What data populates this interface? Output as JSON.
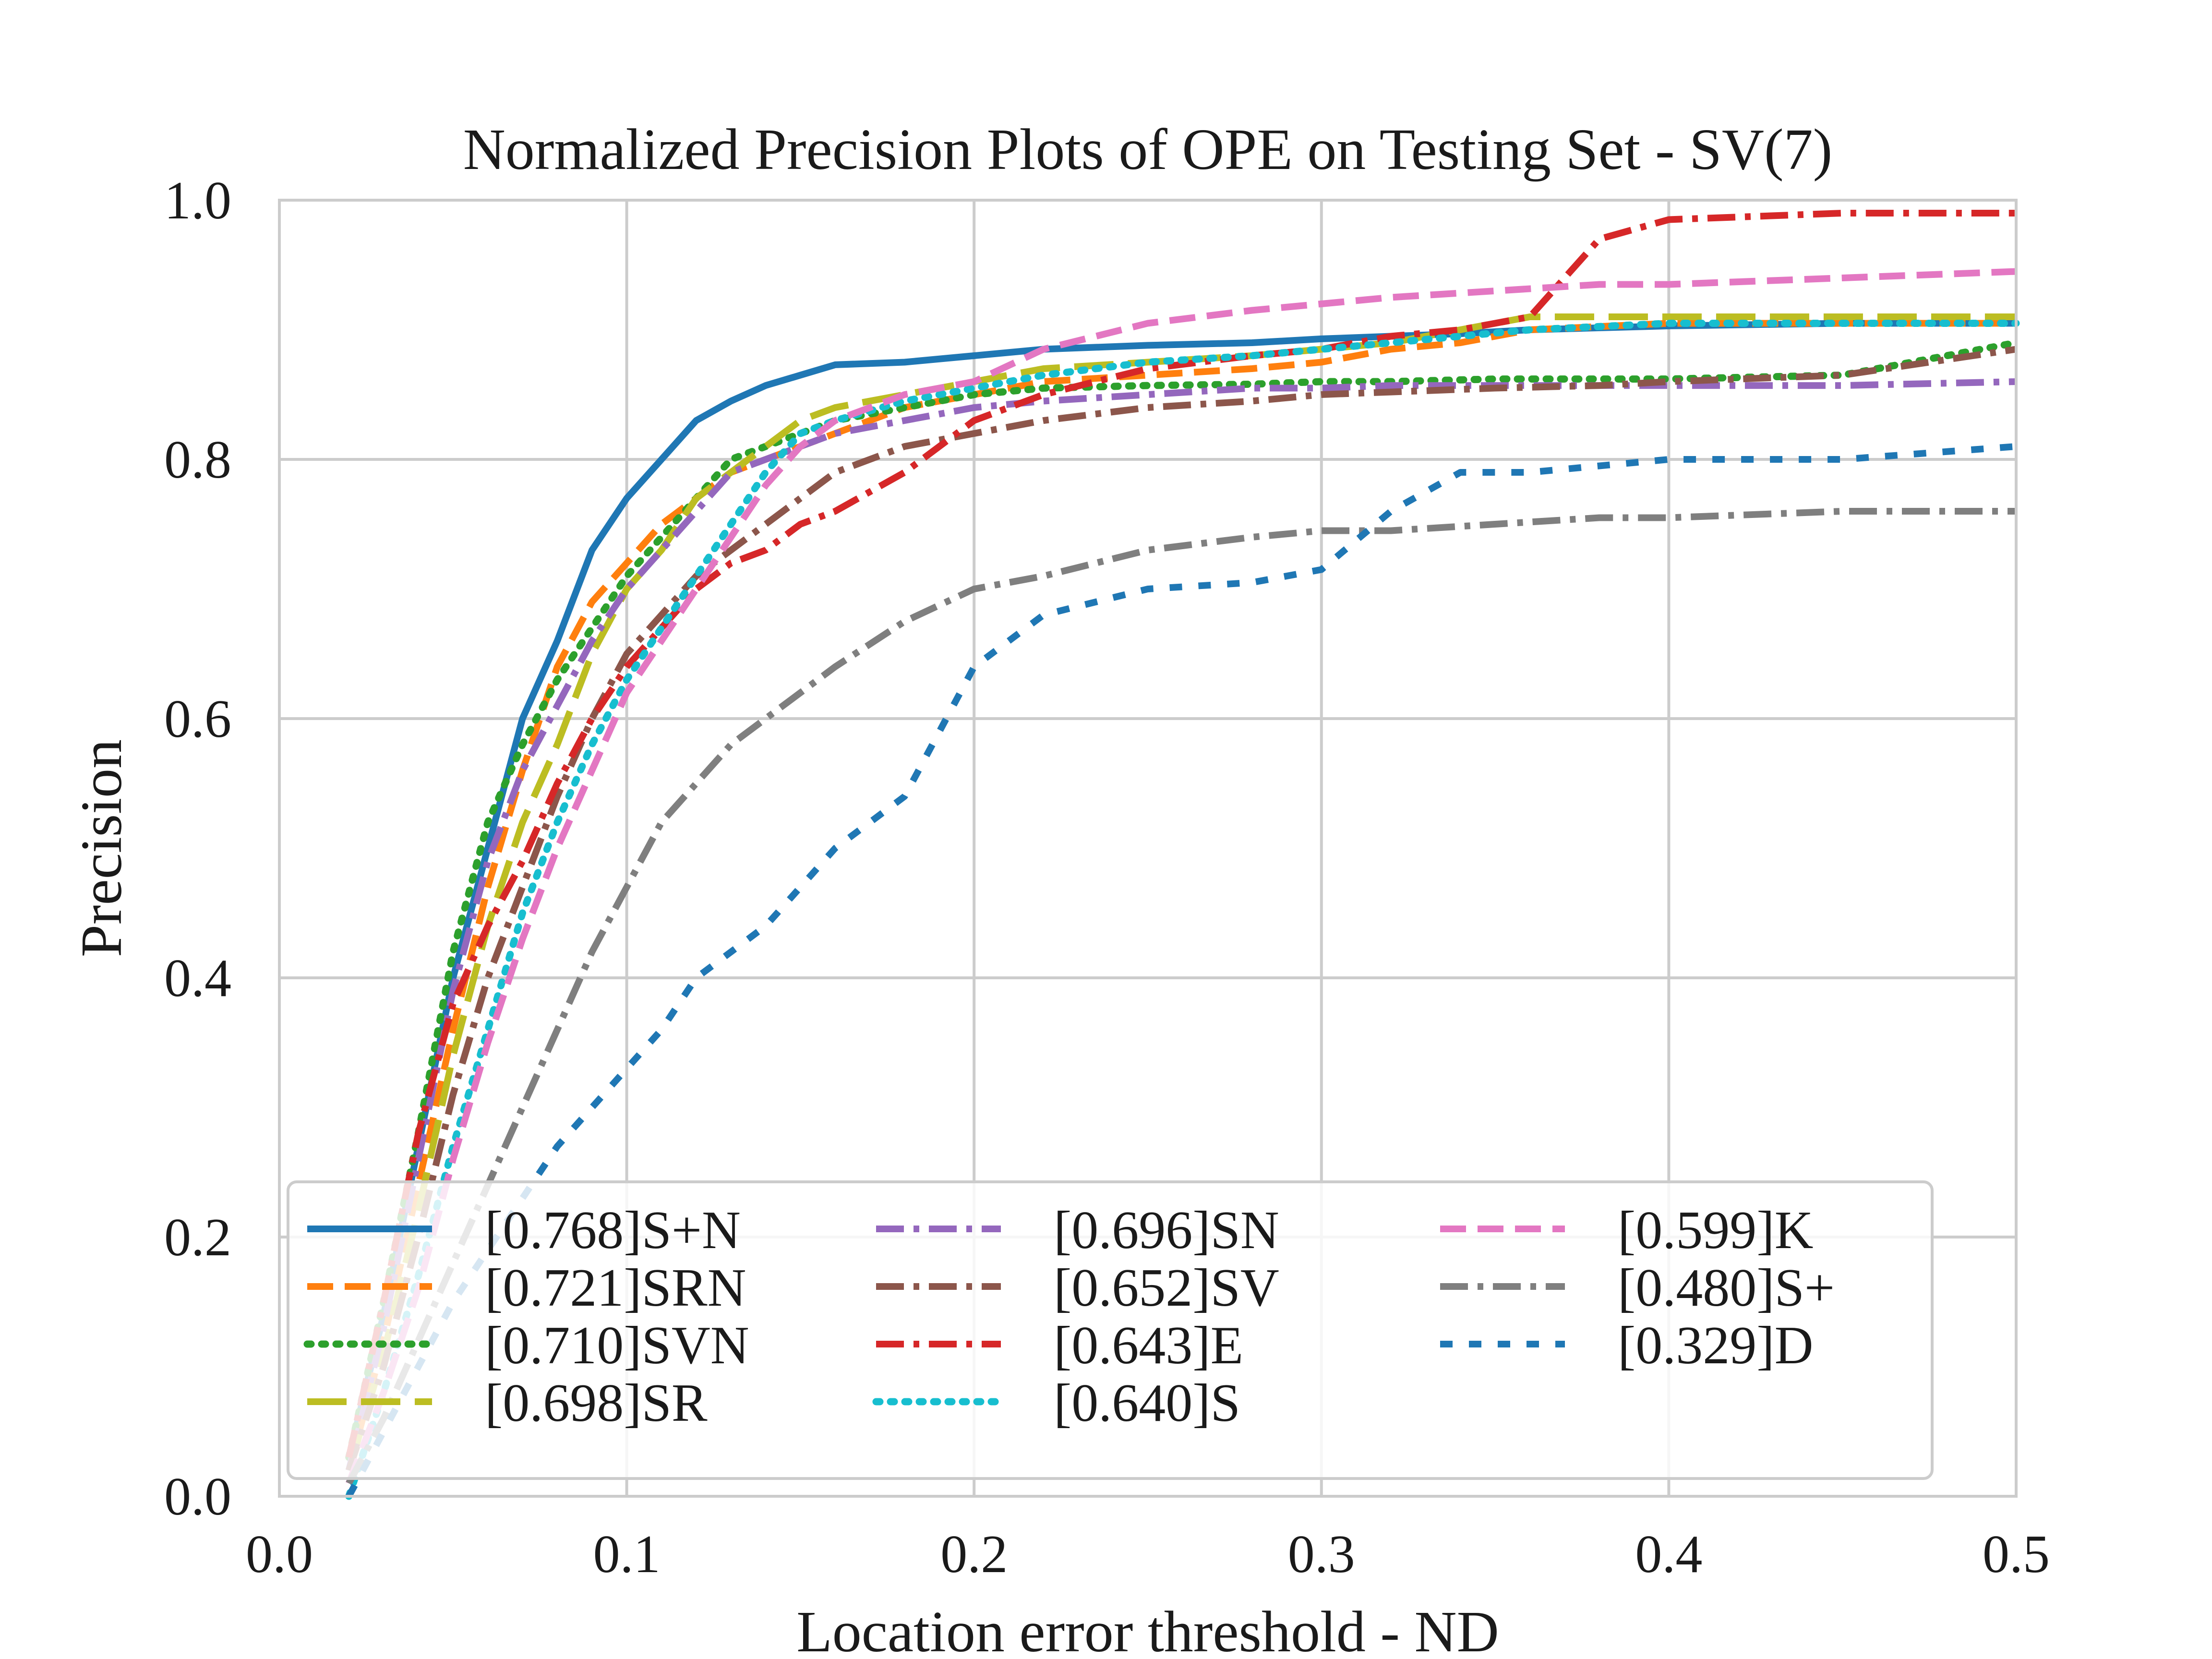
{
  "chart_data": {
    "type": "line",
    "title": "Normalized Precision Plots of OPE on Testing Set - SV(7)",
    "xlabel": "Location error threshold - ND",
    "ylabel": "Precision",
    "xlim": [
      0,
      0.5
    ],
    "ylim": [
      0,
      1
    ],
    "xticks": [
      "0.0",
      "0.1",
      "0.2",
      "0.3",
      "0.4",
      "0.5"
    ],
    "yticks": [
      "0.0",
      "0.2",
      "0.4",
      "0.6",
      "0.8",
      "1.0"
    ],
    "grid": true,
    "legend_position": "lower-center",
    "series": [
      {
        "name": "[0.768]S+N",
        "color": "#1f77b4",
        "style": "solid",
        "x": [
          0.02,
          0.03,
          0.04,
          0.05,
          0.06,
          0.07,
          0.08,
          0.09,
          0.1,
          0.11,
          0.12,
          0.13,
          0.14,
          0.15,
          0.16,
          0.18,
          0.2,
          0.22,
          0.25,
          0.28,
          0.3,
          0.32,
          0.34,
          0.36,
          0.4,
          0.45,
          0.5
        ],
        "y": [
          0.03,
          0.14,
          0.27,
          0.4,
          0.5,
          0.6,
          0.66,
          0.73,
          0.77,
          0.8,
          0.83,
          0.845,
          0.857,
          0.865,
          0.873,
          0.875,
          0.88,
          0.885,
          0.888,
          0.89,
          0.893,
          0.895,
          0.897,
          0.9,
          0.903,
          0.905,
          0.905
        ]
      },
      {
        "name": "[0.721]SRN",
        "color": "#ff7f0e",
        "style": "dashed",
        "x": [
          0.02,
          0.03,
          0.04,
          0.05,
          0.06,
          0.07,
          0.08,
          0.09,
          0.1,
          0.11,
          0.12,
          0.13,
          0.14,
          0.15,
          0.16,
          0.18,
          0.2,
          0.22,
          0.25,
          0.28,
          0.3,
          0.32,
          0.34,
          0.36,
          0.4,
          0.45,
          0.5
        ],
        "y": [
          0.02,
          0.12,
          0.24,
          0.36,
          0.47,
          0.56,
          0.64,
          0.69,
          0.72,
          0.75,
          0.77,
          0.79,
          0.8,
          0.81,
          0.82,
          0.84,
          0.85,
          0.86,
          0.865,
          0.87,
          0.875,
          0.885,
          0.89,
          0.9,
          0.905,
          0.905,
          0.905
        ]
      },
      {
        "name": "[0.710]SVN",
        "color": "#2ca02c",
        "style": "dotted",
        "x": [
          0.02,
          0.03,
          0.04,
          0.05,
          0.06,
          0.07,
          0.08,
          0.09,
          0.1,
          0.11,
          0.12,
          0.13,
          0.14,
          0.15,
          0.16,
          0.18,
          0.2,
          0.22,
          0.25,
          0.28,
          0.3,
          0.32,
          0.35,
          0.38,
          0.4,
          0.45,
          0.5
        ],
        "y": [
          0.03,
          0.15,
          0.28,
          0.42,
          0.52,
          0.58,
          0.63,
          0.67,
          0.71,
          0.74,
          0.77,
          0.8,
          0.81,
          0.82,
          0.83,
          0.84,
          0.85,
          0.855,
          0.857,
          0.858,
          0.86,
          0.86,
          0.862,
          0.862,
          0.862,
          0.865,
          0.89
        ]
      },
      {
        "name": "[0.698]SR",
        "color": "#bcbd22",
        "style": "longdash",
        "x": [
          0.02,
          0.03,
          0.04,
          0.05,
          0.06,
          0.07,
          0.08,
          0.09,
          0.1,
          0.11,
          0.12,
          0.13,
          0.14,
          0.15,
          0.16,
          0.18,
          0.2,
          0.22,
          0.25,
          0.28,
          0.3,
          0.32,
          0.34,
          0.36,
          0.4,
          0.45,
          0.5
        ],
        "y": [
          0.02,
          0.11,
          0.22,
          0.34,
          0.44,
          0.52,
          0.58,
          0.65,
          0.7,
          0.73,
          0.77,
          0.79,
          0.81,
          0.83,
          0.84,
          0.85,
          0.86,
          0.87,
          0.875,
          0.88,
          0.885,
          0.89,
          0.9,
          0.91,
          0.91,
          0.91,
          0.91
        ]
      },
      {
        "name": "[0.696]SN",
        "color": "#9467bd",
        "style": "dashdot",
        "x": [
          0.02,
          0.03,
          0.04,
          0.05,
          0.06,
          0.07,
          0.08,
          0.09,
          0.1,
          0.11,
          0.12,
          0.13,
          0.14,
          0.15,
          0.16,
          0.18,
          0.2,
          0.22,
          0.25,
          0.28,
          0.3,
          0.32,
          0.35,
          0.38,
          0.4,
          0.45,
          0.5
        ],
        "y": [
          0.02,
          0.13,
          0.26,
          0.39,
          0.49,
          0.56,
          0.61,
          0.66,
          0.7,
          0.73,
          0.76,
          0.79,
          0.8,
          0.81,
          0.82,
          0.83,
          0.84,
          0.845,
          0.85,
          0.855,
          0.855,
          0.857,
          0.857,
          0.857,
          0.857,
          0.857,
          0.86
        ]
      },
      {
        "name": "[0.652]SV",
        "color": "#8c564b",
        "style": "dashdot",
        "x": [
          0.02,
          0.03,
          0.04,
          0.05,
          0.06,
          0.07,
          0.08,
          0.09,
          0.1,
          0.11,
          0.12,
          0.13,
          0.14,
          0.15,
          0.16,
          0.18,
          0.2,
          0.22,
          0.25,
          0.28,
          0.3,
          0.32,
          0.35,
          0.38,
          0.4,
          0.45,
          0.5
        ],
        "y": [
          0.02,
          0.1,
          0.2,
          0.31,
          0.4,
          0.47,
          0.54,
          0.6,
          0.65,
          0.68,
          0.71,
          0.73,
          0.75,
          0.77,
          0.79,
          0.81,
          0.82,
          0.83,
          0.84,
          0.845,
          0.85,
          0.852,
          0.855,
          0.857,
          0.86,
          0.865,
          0.885
        ]
      },
      {
        "name": "[0.643]E",
        "color": "#d62728",
        "style": "dashdot",
        "x": [
          0.02,
          0.03,
          0.04,
          0.05,
          0.06,
          0.07,
          0.08,
          0.09,
          0.1,
          0.11,
          0.12,
          0.13,
          0.14,
          0.15,
          0.16,
          0.18,
          0.2,
          0.22,
          0.25,
          0.28,
          0.3,
          0.32,
          0.34,
          0.36,
          0.38,
          0.4,
          0.45,
          0.5
        ],
        "y": [
          0.03,
          0.15,
          0.28,
          0.38,
          0.44,
          0.49,
          0.55,
          0.6,
          0.64,
          0.67,
          0.7,
          0.72,
          0.73,
          0.75,
          0.76,
          0.79,
          0.83,
          0.85,
          0.87,
          0.88,
          0.885,
          0.895,
          0.9,
          0.91,
          0.97,
          0.985,
          0.99,
          0.99
        ]
      },
      {
        "name": "[0.640]S",
        "color": "#17becf",
        "style": "dotted",
        "x": [
          0.02,
          0.03,
          0.04,
          0.05,
          0.06,
          0.07,
          0.08,
          0.09,
          0.1,
          0.11,
          0.12,
          0.13,
          0.14,
          0.15,
          0.16,
          0.18,
          0.2,
          0.22,
          0.25,
          0.28,
          0.3,
          0.32,
          0.34,
          0.36,
          0.4,
          0.45,
          0.5
        ],
        "y": [
          0.0,
          0.08,
          0.17,
          0.27,
          0.36,
          0.45,
          0.52,
          0.58,
          0.63,
          0.67,
          0.71,
          0.75,
          0.79,
          0.82,
          0.83,
          0.845,
          0.855,
          0.865,
          0.875,
          0.88,
          0.885,
          0.89,
          0.895,
          0.9,
          0.905,
          0.905,
          0.905
        ]
      },
      {
        "name": "[0.599]K",
        "color": "#e377c2",
        "style": "dashed",
        "x": [
          0.02,
          0.03,
          0.04,
          0.05,
          0.06,
          0.07,
          0.08,
          0.09,
          0.1,
          0.11,
          0.12,
          0.13,
          0.14,
          0.15,
          0.16,
          0.18,
          0.2,
          0.22,
          0.25,
          0.28,
          0.3,
          0.32,
          0.35,
          0.38,
          0.4,
          0.45,
          0.5
        ],
        "y": [
          0.01,
          0.08,
          0.16,
          0.26,
          0.35,
          0.43,
          0.5,
          0.56,
          0.62,
          0.66,
          0.7,
          0.74,
          0.78,
          0.81,
          0.83,
          0.85,
          0.86,
          0.885,
          0.905,
          0.915,
          0.92,
          0.925,
          0.93,
          0.935,
          0.935,
          0.94,
          0.945
        ]
      },
      {
        "name": "[0.480]S+",
        "color": "#7f7f7f",
        "style": "dashdot",
        "x": [
          0.02,
          0.03,
          0.04,
          0.05,
          0.06,
          0.07,
          0.08,
          0.09,
          0.1,
          0.11,
          0.12,
          0.13,
          0.14,
          0.15,
          0.16,
          0.18,
          0.2,
          0.22,
          0.25,
          0.28,
          0.3,
          0.32,
          0.35,
          0.38,
          0.4,
          0.45,
          0.5
        ],
        "y": [
          0.01,
          0.06,
          0.12,
          0.18,
          0.24,
          0.3,
          0.36,
          0.42,
          0.47,
          0.52,
          0.55,
          0.58,
          0.6,
          0.62,
          0.64,
          0.675,
          0.7,
          0.71,
          0.73,
          0.74,
          0.745,
          0.745,
          0.75,
          0.755,
          0.755,
          0.76,
          0.76
        ]
      },
      {
        "name": "[0.329]D",
        "color": "#1f77b4",
        "style": "loosedot",
        "x": [
          0.02,
          0.03,
          0.04,
          0.05,
          0.06,
          0.07,
          0.08,
          0.09,
          0.1,
          0.11,
          0.12,
          0.13,
          0.14,
          0.15,
          0.16,
          0.18,
          0.2,
          0.22,
          0.25,
          0.28,
          0.3,
          0.32,
          0.34,
          0.36,
          0.38,
          0.4,
          0.45,
          0.5
        ],
        "y": [
          0.0,
          0.05,
          0.1,
          0.15,
          0.19,
          0.23,
          0.27,
          0.3,
          0.33,
          0.36,
          0.4,
          0.42,
          0.44,
          0.47,
          0.5,
          0.54,
          0.64,
          0.68,
          0.7,
          0.705,
          0.715,
          0.76,
          0.79,
          0.79,
          0.795,
          0.8,
          0.8,
          0.81
        ]
      }
    ]
  }
}
